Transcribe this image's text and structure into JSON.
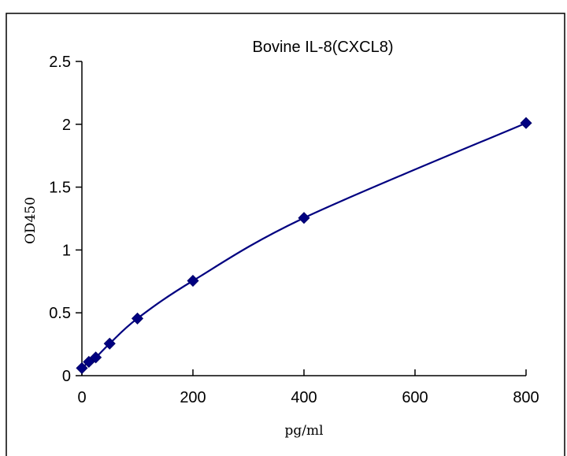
{
  "chart_data": {
    "type": "scatter",
    "title": "Bovine IL-8(CXCL8)",
    "xlabel": "pg/ml",
    "ylabel": "OD450",
    "xlim": [
      0,
      800
    ],
    "ylim": [
      0,
      2.5
    ],
    "x_ticks": [
      "0",
      "200",
      "400",
      "600",
      "800"
    ],
    "y_ticks": [
      "0",
      "0.5",
      "1",
      "1.5",
      "2",
      "2.5"
    ],
    "grid": false,
    "fit_line": true,
    "series": [
      {
        "x": [
          0,
          12.5,
          25,
          50,
          100,
          200,
          400,
          800
        ],
        "y": [
          0.06,
          0.11,
          0.145,
          0.255,
          0.455,
          0.755,
          1.255,
          2.01
        ]
      }
    ],
    "colors": {
      "series": "#000080",
      "axis": "#000000"
    }
  }
}
